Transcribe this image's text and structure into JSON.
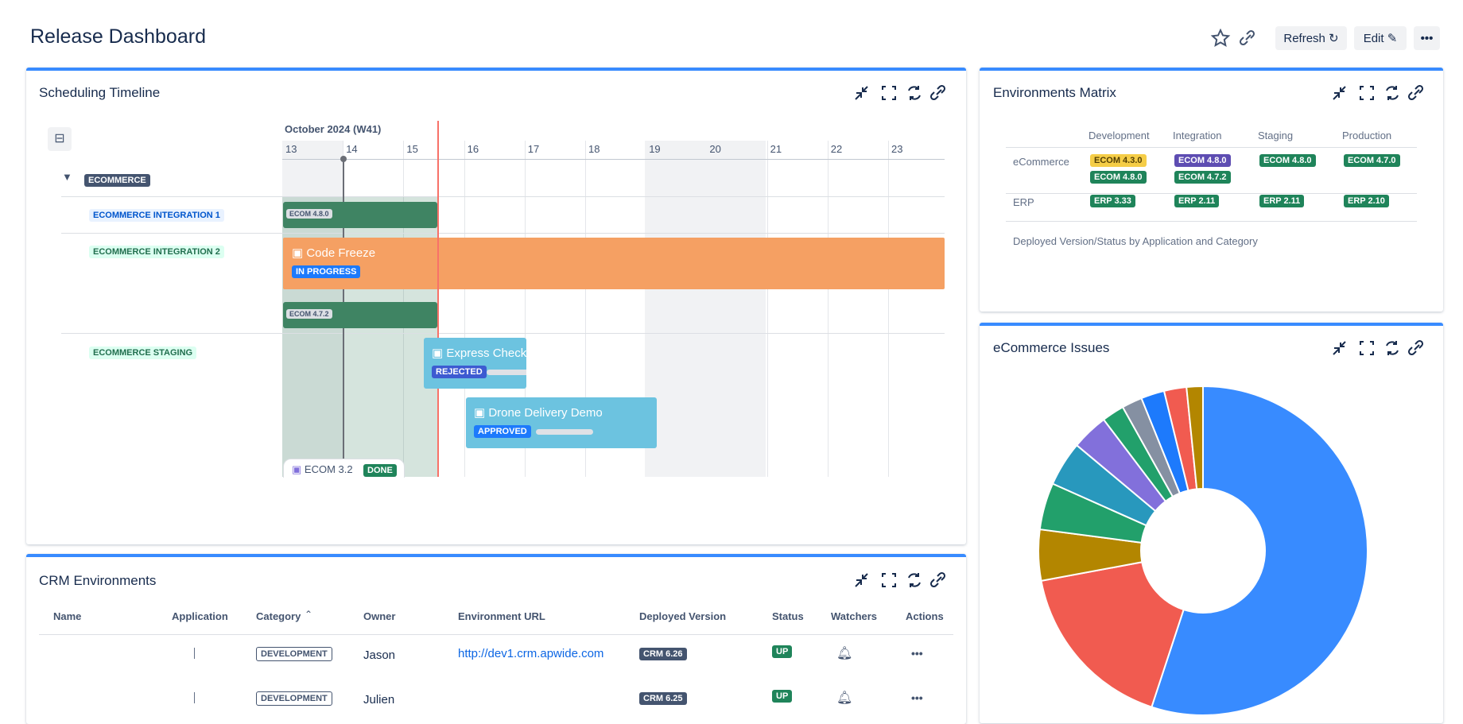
{
  "header": {
    "title": "Release Dashboard",
    "buttons": [
      "Refresh",
      "Edit"
    ]
  },
  "timeline": {
    "title": "Scheduling Timeline",
    "month": "October 2024 (W41)",
    "days": [
      "13",
      "14",
      "15",
      "16",
      "17",
      "18",
      "19",
      "20",
      "21",
      "22",
      "23"
    ],
    "groups": [
      "ECOMMERCE",
      "ECOMMERCE INTEGRATION 1",
      "ECOMMERCE INTEGRATION 2",
      "ECOMMERCE STAGING"
    ],
    "bars": [
      {
        "label": "ECOM 4.8.0"
      },
      {
        "label": "Code Freeze",
        "status": "IN PROGRESS"
      },
      {
        "label": "ECOM 4.7.2"
      },
      {
        "label": "Express Checkout",
        "status": "REJECTED"
      },
      {
        "label": "Drone Delivery Demo",
        "status": "APPROVED"
      },
      {
        "label": "ECOM 3.2",
        "status": "DONE"
      }
    ]
  },
  "matrix": {
    "title": "Environments Matrix",
    "columns": [
      "Development",
      "Integration",
      "Staging",
      "Production"
    ],
    "rows": [
      {
        "name": "eCommerce",
        "cells": [
          [
            "ECOM 4.3.0",
            "ECOM 4.8.0"
          ],
          [
            "ECOM 4.8.0",
            "ECOM 4.7.2"
          ],
          [
            "ECOM 4.8.0"
          ],
          [
            "ECOM 4.7.0"
          ]
        ]
      },
      {
        "name": "ERP",
        "cells": [
          [
            "ERP 3.33"
          ],
          [
            "ERP 2.11"
          ],
          [
            "ERP 2.11"
          ],
          [
            "ERP 2.10"
          ]
        ]
      }
    ],
    "caption": "Deployed Version/Status by Application and Category"
  },
  "issues": {
    "title": "eCommerce Issues"
  },
  "chart_data": {
    "type": "pie",
    "values": [
      55,
      17,
      5,
      4.6,
      4.4,
      3.6,
      2.2,
      2,
      2.3,
      2.2,
      1.6
    ],
    "colors": [
      "#388bff",
      "#f15b50",
      "#b38600",
      "#22a06b",
      "#2898bd",
      "#8270db",
      "#22a06b",
      "#8590a2",
      "#1d7afc",
      "#f15b50",
      "#b38600"
    ]
  },
  "crm": {
    "title": "CRM Environments",
    "columns": [
      "Name",
      "Application",
      "Category",
      "Owner",
      "Environment URL",
      "Deployed Version",
      "Status",
      "Watchers",
      "Actions"
    ],
    "rows": [
      {
        "category": "DEVELOPMENT",
        "owner": "Jason",
        "url": "http://dev1.crm.apwide.com",
        "version": "CRM 6.26",
        "status": "UP"
      },
      {
        "category": "DEVELOPMENT",
        "owner": "Julien",
        "version": "CRM 6.25",
        "status": "UP"
      }
    ]
  }
}
